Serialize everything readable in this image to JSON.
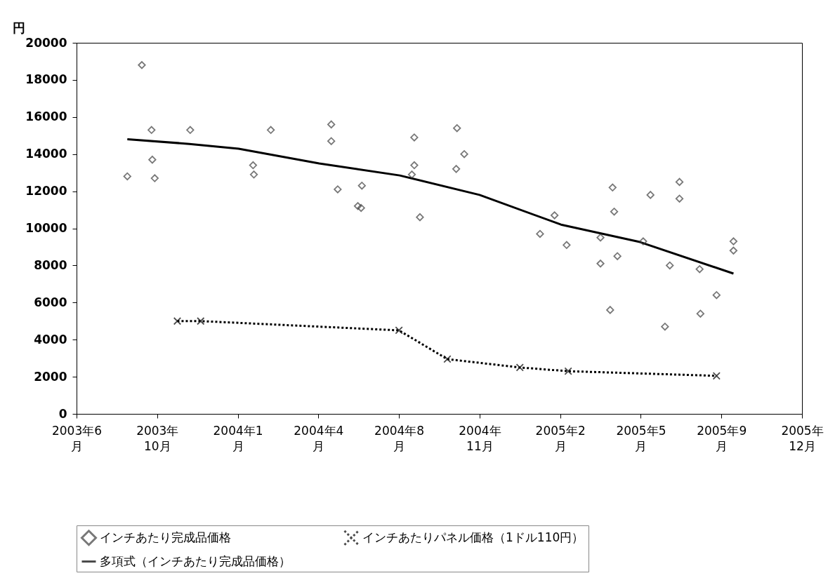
{
  "chart_data": {
    "type": "scatter",
    "ylabel": "円",
    "legend": "bottom",
    "grid": false,
    "xlim": [
      "2003-06-28",
      "2005-12-14"
    ],
    "xticks": [
      {
        "value": "2003-06-28",
        "label": "2003年6月"
      },
      {
        "value": "2003-10-06",
        "label": "2003年10月"
      },
      {
        "value": "2004-01-14",
        "label": "2004年1月"
      },
      {
        "value": "2004-04-23",
        "label": "2004年4月"
      },
      {
        "value": "2004-08-01",
        "label": "2004年8月"
      },
      {
        "value": "2004-11-09",
        "label": "2004年11月"
      },
      {
        "value": "2005-02-17",
        "label": "2005年2月"
      },
      {
        "value": "2005-05-28",
        "label": "2005年5月"
      },
      {
        "value": "2005-09-05",
        "label": "2005年9月"
      },
      {
        "value": "2005-12-14",
        "label": "2005年12月"
      }
    ],
    "ylim": [
      0,
      20000
    ],
    "yticks": [
      0,
      2000,
      4000,
      6000,
      8000,
      10000,
      12000,
      14000,
      16000,
      18000,
      20000
    ],
    "series": [
      {
        "name": "インチあたり完成品価格",
        "marker": "diamond",
        "color": "#404040",
        "x": [
          "2003-08-30",
          "2003-09-17",
          "2003-09-29",
          "2003-09-30",
          "2003-10-03",
          "2003-11-16",
          "2004-02-02",
          "2004-02-03",
          "2004-02-24",
          "2004-05-09",
          "2004-05-09",
          "2004-05-17",
          "2004-06-11",
          "2004-06-15",
          "2004-06-16",
          "2004-08-20",
          "2004-08-20",
          "2004-08-17",
          "2004-08-27",
          "2004-10-12",
          "2004-10-11",
          "2004-10-21",
          "2005-01-23",
          "2005-02-10",
          "2005-02-25",
          "2005-04-08",
          "2005-04-08",
          "2005-04-23",
          "2005-04-25",
          "2005-04-29",
          "2005-04-20",
          "2005-05-31",
          "2005-06-09",
          "2005-06-27",
          "2005-07-03",
          "2005-07-15",
          "2005-07-15",
          "2005-08-09",
          "2005-08-10",
          "2005-08-30",
          "2005-09-20",
          "2005-09-20"
        ],
        "values": [
          12800,
          18800,
          15300,
          13700,
          12700,
          15300,
          13400,
          12900,
          15300,
          15600,
          14700,
          12100,
          11200,
          11100,
          12300,
          14900,
          13400,
          12900,
          10600,
          15400,
          13200,
          14000,
          9700,
          10700,
          9100,
          9500,
          8100,
          12200,
          10900,
          8500,
          5600,
          9300,
          11800,
          4700,
          8000,
          12500,
          11600,
          7800,
          5400,
          6400,
          9300,
          8800
        ]
      },
      {
        "name": "インチあたりパネル価格（1ドル110円）",
        "type": "line",
        "marker": "cross",
        "line_style": "dotted",
        "color": "#000000",
        "x": [
          "2003-10-31",
          "2003-11-29",
          "2004-08-01",
          "2004-09-30",
          "2004-12-29",
          "2005-02-27",
          "2005-08-30"
        ],
        "values": [
          5000,
          5000,
          4500,
          2950,
          2500,
          2300,
          2050
        ]
      },
      {
        "name": "多項式（インチあたり完成品価格）",
        "type": "line",
        "marker": "none",
        "line_style": "solid",
        "color": "#000000",
        "x": [
          "2003-08-30",
          "2003-11-15",
          "2004-01-15",
          "2004-04-24",
          "2004-08-02",
          "2004-11-09",
          "2005-02-18",
          "2005-05-27",
          "2005-09-20"
        ],
        "values": [
          14800,
          14550,
          14290,
          13500,
          12850,
          11800,
          10200,
          9260,
          7560
        ]
      }
    ]
  }
}
